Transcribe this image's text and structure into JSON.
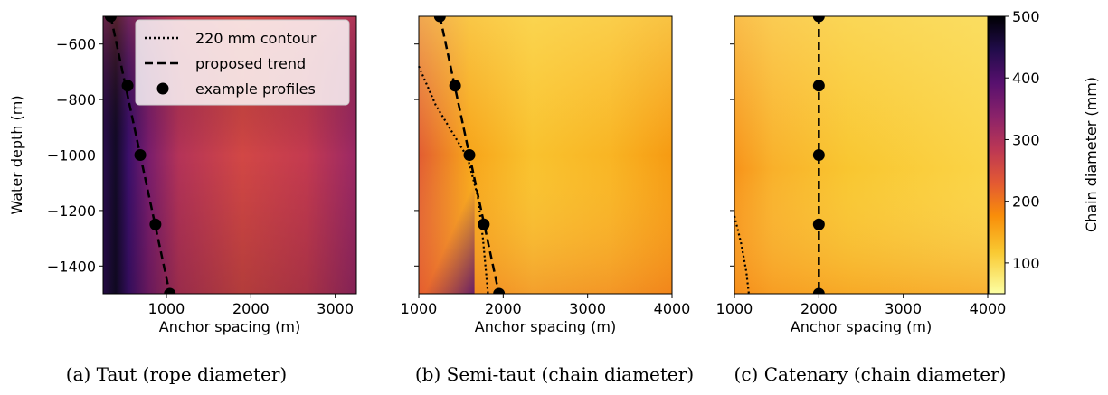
{
  "chart_data": {
    "type": "heatmap",
    "colorbar": {
      "label": "Chain diameter (mm)",
      "range": [
        50,
        500
      ],
      "ticks": [
        100,
        200,
        300,
        400,
        500
      ],
      "colormap": "inferno_r"
    },
    "legend": {
      "placement": "top-right of panel (a)",
      "entries": [
        {
          "label": "220 mm contour",
          "style": "dotted"
        },
        {
          "label": "proposed trend",
          "style": "dashed"
        },
        {
          "label": "example profiles",
          "style": "marker"
        }
      ]
    },
    "panels": [
      {
        "caption": "(a) Taut (rope diameter)",
        "xlabel": "Anchor spacing (m)",
        "ylabel": "Water depth (m)",
        "xlim": [
          250,
          3250
        ],
        "ylim": [
          -1500,
          -500
        ],
        "xticks": [
          1000,
          2000,
          3000
        ],
        "yticks": [
          -600,
          -800,
          -1000,
          -1200,
          -1400
        ],
        "trend": [
          [
            340,
            -500
          ],
          [
            1040,
            -1500
          ]
        ],
        "profiles": [
          [
            340,
            -500
          ],
          [
            540,
            -750
          ],
          [
            690,
            -1000
          ],
          [
            870,
            -1250
          ],
          [
            1040,
            -1500
          ]
        ],
        "contour": [],
        "field": "taut"
      },
      {
        "caption": "(b) Semi-taut (chain diameter)",
        "xlabel": "Anchor spacing (m)",
        "ylabel": "",
        "xlim": [
          1000,
          4000
        ],
        "ylim": [
          -1500,
          -500
        ],
        "xticks": [
          1000,
          2000,
          3000,
          4000
        ],
        "yticks": [
          -600,
          -800,
          -1000,
          -1200,
          -1400
        ],
        "trend": [
          [
            1250,
            -500
          ],
          [
            1950,
            -1500
          ]
        ],
        "profiles": [
          [
            1250,
            -500
          ],
          [
            1430,
            -750
          ],
          [
            1600,
            -1000
          ],
          [
            1770,
            -1250
          ],
          [
            1950,
            -1500
          ]
        ],
        "contour": [
          [
            1000,
            -680
          ],
          [
            1200,
            -820
          ],
          [
            1420,
            -930
          ],
          [
            1580,
            -1010
          ],
          [
            1700,
            -1150
          ],
          [
            1760,
            -1300
          ],
          [
            1820,
            -1500
          ]
        ],
        "field": "semitaut"
      },
      {
        "caption": "(c) Catenary (chain diameter)",
        "xlabel": "Anchor spacing (m)",
        "ylabel": "",
        "xlim": [
          1000,
          4000
        ],
        "ylim": [
          -1500,
          -500
        ],
        "xticks": [
          1000,
          2000,
          3000,
          4000
        ],
        "yticks": [
          -600,
          -800,
          -1000,
          -1200,
          -1400
        ],
        "trend": [
          [
            2000,
            -500
          ],
          [
            2000,
            -1500
          ]
        ],
        "profiles": [
          [
            2000,
            -500
          ],
          [
            2000,
            -750
          ],
          [
            2000,
            -1000
          ],
          [
            2000,
            -1250
          ],
          [
            2000,
            -1500
          ]
        ],
        "contour": [
          [
            1000,
            -1220
          ],
          [
            1080,
            -1320
          ],
          [
            1140,
            -1420
          ],
          [
            1170,
            -1500
          ]
        ],
        "field": "catenary"
      }
    ]
  }
}
